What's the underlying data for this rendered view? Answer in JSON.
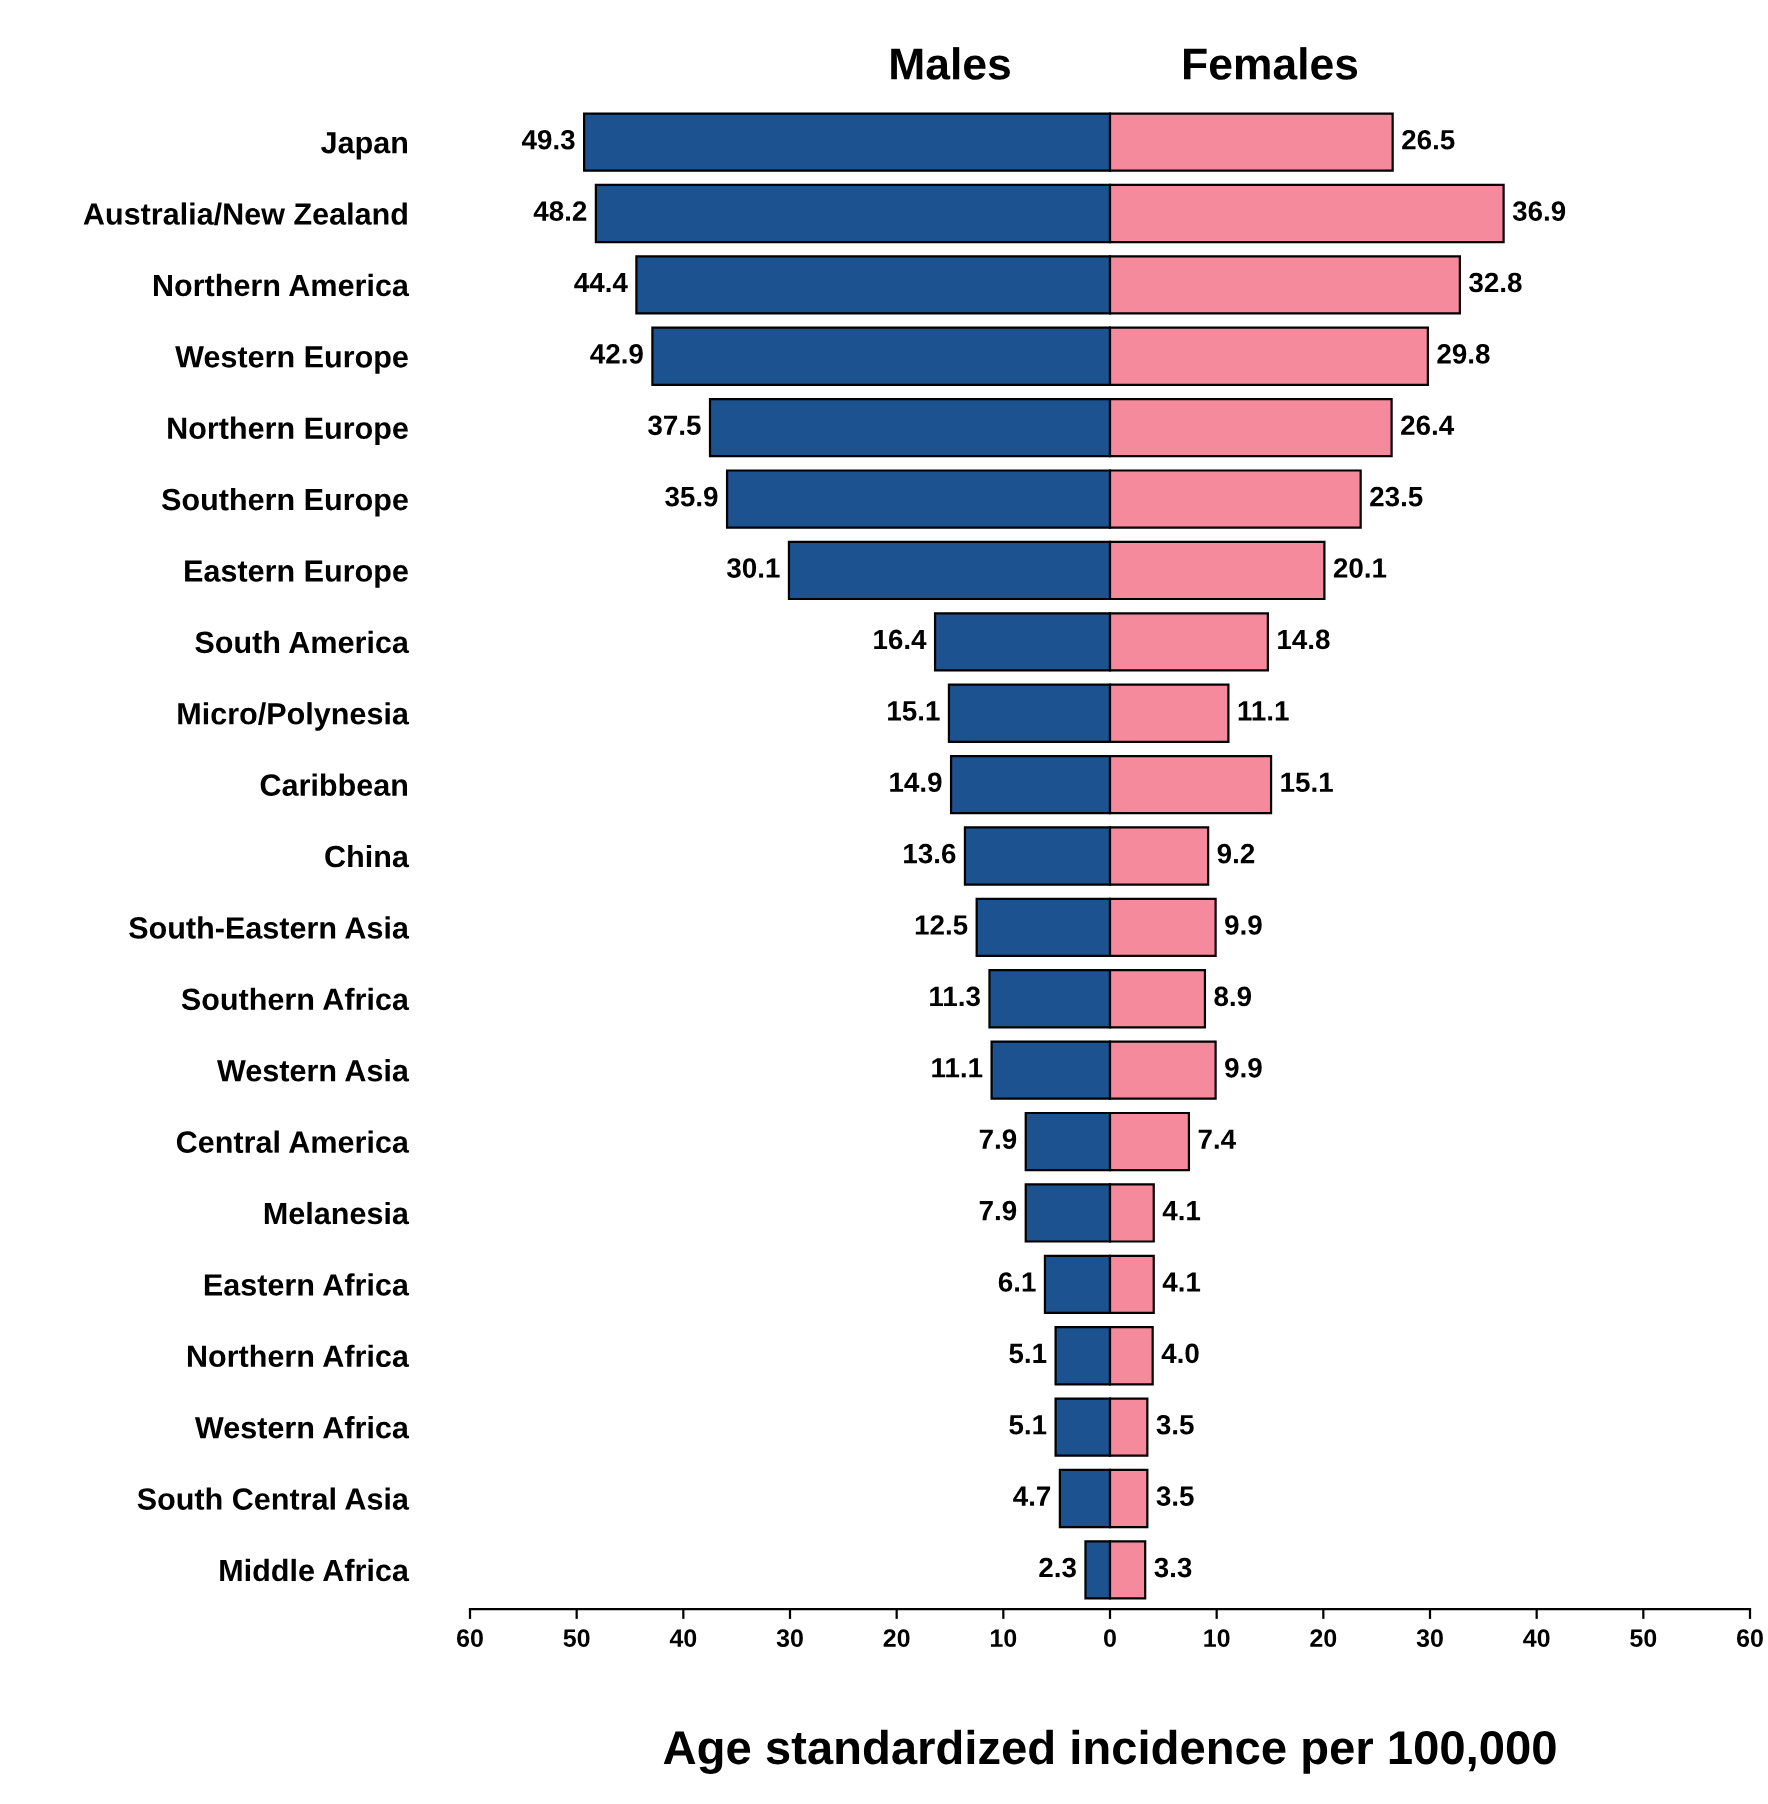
{
  "chart_data": {
    "type": "bar",
    "orientation": "horizontal",
    "xlabel": "Age standardized incidence per 100,000",
    "categories": [
      "Japan",
      "Australia/New Zealand",
      "Northern America",
      "Western Europe",
      "Northern Europe",
      "Southern Europe",
      "Eastern Europe",
      "South America",
      "Micro/Polynesia",
      "Caribbean",
      "China",
      "South-Eastern Asia",
      "Southern Africa",
      "Western Asia",
      "Central America",
      "Melanesia",
      "Eastern Africa",
      "Northern Africa",
      "Western Africa",
      "South Central Asia",
      "Middle Africa"
    ],
    "series": [
      {
        "name": "Males",
        "color": "#1d5290",
        "values": [
          49.3,
          48.2,
          44.4,
          42.9,
          37.5,
          35.9,
          30.1,
          16.4,
          15.1,
          14.9,
          13.6,
          12.5,
          11.3,
          11.1,
          7.9,
          7.9,
          6.1,
          5.1,
          5.1,
          4.7,
          2.3
        ],
        "base": [
          -49.3,
          -48.2,
          -44.4,
          -42.9,
          -37.5,
          -35.9,
          -30.1,
          -16.4,
          -15.1,
          -14.9,
          -13.6,
          -12.5,
          -11.3,
          -11.1,
          -7.9,
          -7.9,
          -6.1,
          -5.1,
          -5.1,
          -4.7,
          -2.3
        ]
      },
      {
        "name": "Females",
        "color": "#f48a9c",
        "values": [
          26.5,
          36.9,
          32.8,
          29.8,
          26.4,
          23.5,
          20.1,
          14.8,
          11.1,
          15.1,
          9.2,
          9.9,
          8.9,
          9.9,
          7.4,
          4.1,
          4.1,
          4.0,
          3.5,
          3.5,
          3.3
        ],
        "value_labels": [
          "26.5",
          "36.9",
          "32.8",
          "29.8",
          "26.4",
          "23.5",
          "20.1",
          "14.8",
          "11.1",
          "15.1",
          "9.2",
          "9.9",
          "8.9",
          "9.9",
          "7.4",
          "4.1",
          "4.1",
          "4.0",
          "3.5",
          "3.5",
          "3.3"
        ],
        "base": [
          0,
          0,
          0,
          0,
          0,
          0,
          0,
          0,
          0,
          0,
          0,
          0,
          0,
          0,
          0,
          0,
          0,
          0,
          0,
          0,
          0
        ]
      }
    ],
    "data_labels": true,
    "grid": false,
    "xlim": [
      -60,
      60
    ],
    "xticks": [
      {
        "value": -60,
        "label": "60"
      },
      {
        "value": -50,
        "label": "50"
      },
      {
        "value": -40,
        "label": "40"
      },
      {
        "value": -30,
        "label": "30"
      },
      {
        "value": -20,
        "label": "20"
      },
      {
        "value": -10,
        "label": "10"
      },
      0,
      10,
      20,
      30,
      40,
      50,
      60
    ]
  }
}
